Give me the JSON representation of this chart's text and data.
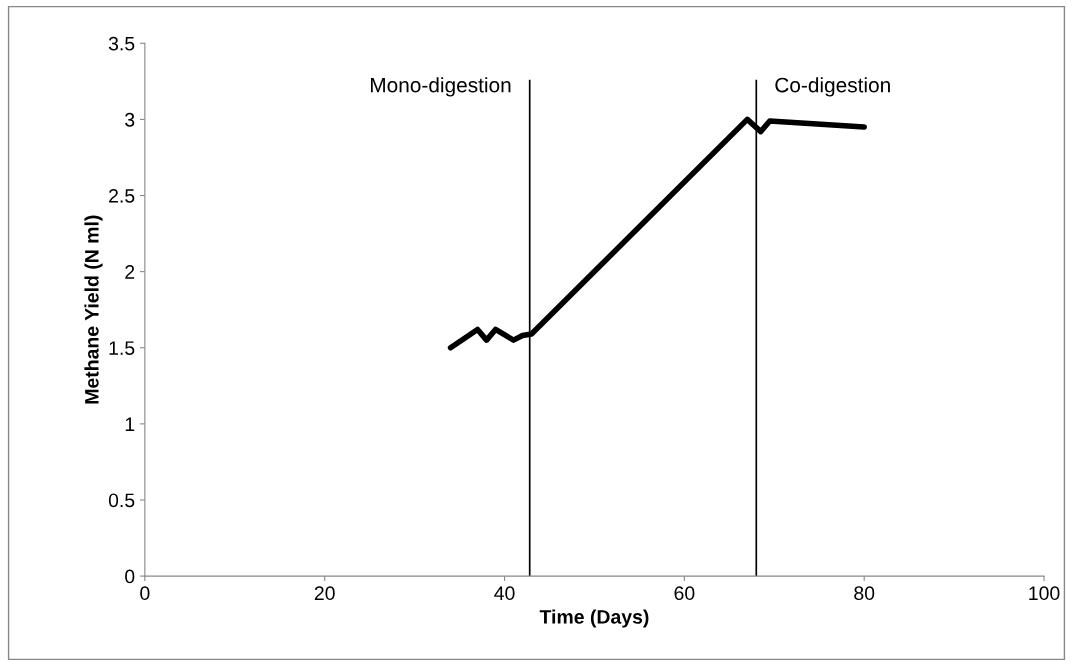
{
  "chart_data": {
    "type": "line",
    "xlabel": "Time (Days)",
    "ylabel": "Methane Yield (N ml)",
    "x": [
      34,
      37,
      38,
      39,
      41,
      42,
      43,
      67,
      68.5,
      69.5,
      80
    ],
    "series": [
      {
        "color": "#000000",
        "values": [
          1.5,
          1.62,
          1.55,
          1.62,
          1.55,
          1.58,
          1.59,
          3.0,
          2.92,
          2.99,
          2.95
        ]
      }
    ],
    "xlim": [
      0,
      100
    ],
    "xticks": [
      0,
      20,
      40,
      60,
      80,
      100
    ],
    "ylim": [
      0,
      3.5
    ],
    "yticks": [
      0,
      0.5,
      1,
      1.5,
      2,
      2.5,
      3,
      3.5
    ],
    "ref_lines": [
      {
        "axis": "x",
        "value": 42.8,
        "label": "Mono-digestion",
        "color": "#000000"
      },
      {
        "axis": "x",
        "value": 68,
        "label": "Co-digestion",
        "color": "#000000"
      }
    ],
    "grid": false,
    "legend": false,
    "marker": "none",
    "line_style": "solid"
  }
}
